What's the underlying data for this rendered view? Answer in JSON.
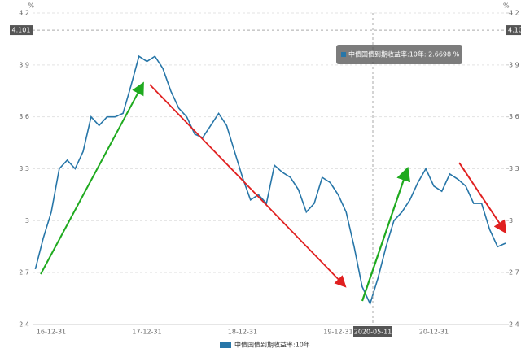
{
  "chart_data": {
    "type": "line",
    "unit": "%",
    "categories": [
      null,
      null,
      "16-12-31",
      null,
      null,
      null,
      null,
      null,
      null,
      null,
      null,
      null,
      null,
      null,
      "17-12-31",
      null,
      null,
      null,
      null,
      null,
      null,
      null,
      null,
      null,
      null,
      null,
      "18-12-31",
      null,
      null,
      null,
      null,
      null,
      null,
      null,
      null,
      null,
      null,
      null,
      "19-12-31",
      null,
      null,
      null,
      null,
      null,
      null,
      null,
      null,
      null,
      null,
      null,
      "20-12-31",
      null,
      null,
      null,
      null,
      null,
      null,
      null,
      null,
      null
    ],
    "series": [
      {
        "name": "中债国债到期收益率:10年",
        "color": "#2776a8",
        "values": [
          2.72,
          2.9,
          3.05,
          3.3,
          3.35,
          3.3,
          3.4,
          3.6,
          3.55,
          3.6,
          3.6,
          3.62,
          3.78,
          3.95,
          3.92,
          3.95,
          3.88,
          3.75,
          3.65,
          3.6,
          3.5,
          3.48,
          3.55,
          3.62,
          3.55,
          3.4,
          3.25,
          3.12,
          3.15,
          3.1,
          3.32,
          3.28,
          3.25,
          3.18,
          3.05,
          3.1,
          3.25,
          3.22,
          3.15,
          3.05,
          2.85,
          2.62,
          2.52,
          2.67,
          2.85,
          3.0,
          3.05,
          3.12,
          3.22,
          3.3,
          3.2,
          3.17,
          3.27,
          3.24,
          3.2,
          3.1,
          3.1,
          2.95,
          2.85,
          2.87
        ]
      }
    ],
    "ylim": [
      2.4,
      4.2
    ],
    "yticks": [
      2.4,
      2.7,
      3,
      3.3,
      3.6,
      3.9,
      4.2
    ],
    "y2lim": [
      2.4,
      4.2
    ],
    "y2ticks": [
      2.4,
      2.7,
      3,
      3.3,
      3.6,
      3.9,
      4.2
    ],
    "grid": true,
    "crosshair": {
      "x_label": "2020-05-11",
      "y_value": 4.101
    },
    "tooltip": "中债国债到期收益率:10年: 2.6698 %"
  }
}
